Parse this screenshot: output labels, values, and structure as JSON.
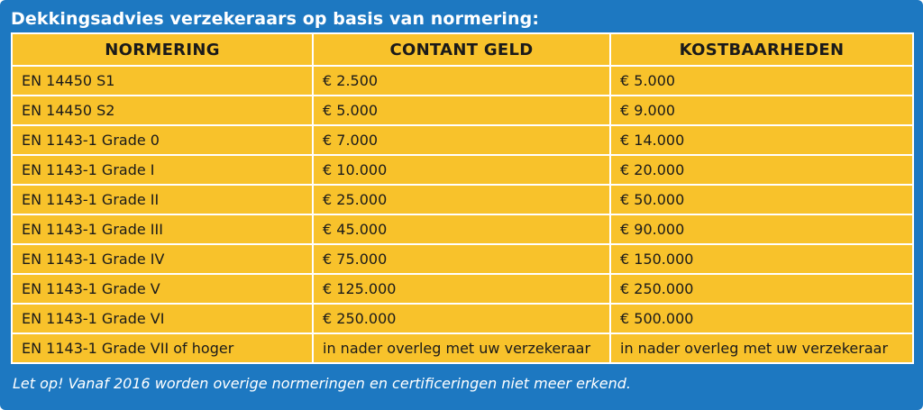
{
  "title": "Dekkingsadvies verzekeraars op basis van normering:",
  "table": {
    "headers": [
      "NORMERING",
      "CONTANT GELD",
      "KOSTBAARHEDEN"
    ],
    "rows": [
      [
        "EN 14450 S1",
        "€ 2.500",
        "€ 5.000"
      ],
      [
        "EN 14450 S2",
        "€ 5.000",
        "€ 9.000"
      ],
      [
        "EN 1143-1 Grade 0",
        "€ 7.000",
        "€ 14.000"
      ],
      [
        "EN 1143-1 Grade I",
        "€ 10.000",
        "€ 20.000"
      ],
      [
        "EN 1143-1 Grade II",
        "€ 25.000",
        "€ 50.000"
      ],
      [
        "EN 1143-1 Grade III",
        "€ 45.000",
        "€ 90.000"
      ],
      [
        "EN 1143-1 Grade IV",
        "€ 75.000",
        "€ 150.000"
      ],
      [
        "EN 1143-1 Grade V",
        "€ 125.000",
        "€ 250.000"
      ],
      [
        "EN 1143-1 Grade VI",
        "€ 250.000",
        "€ 500.000"
      ],
      [
        "EN 1143-1 Grade VII of hoger",
        "in nader overleg met uw verzekeraar",
        "in nader overleg met uw verzekeraar"
      ]
    ]
  },
  "note": "Let op! Vanaf 2016 worden overige normeringen en certificeringen niet meer erkend.",
  "colors": {
    "background": "#1d78c1",
    "table_fill": "#f8c22b",
    "grid_lines": "#ffffff"
  }
}
